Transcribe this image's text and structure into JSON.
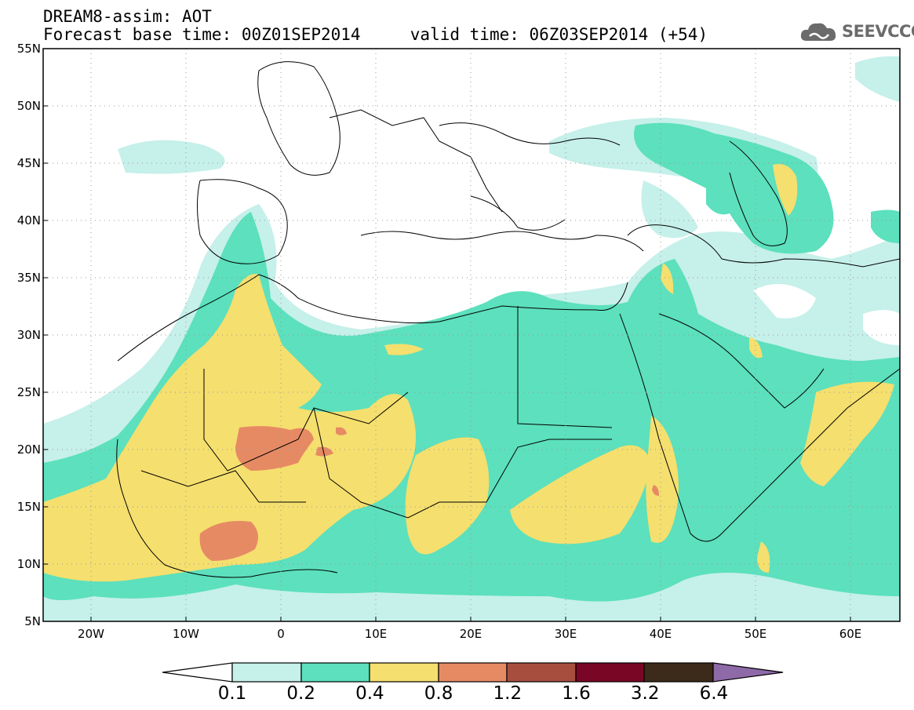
{
  "header": {
    "title_line1": "DREAM8-assim: AOT",
    "title_line2": "Forecast base time: 00Z01SEP2014     valid time: 06Z03SEP2014 (+54)"
  },
  "logo": {
    "icon": "cloud-logo-icon",
    "text": "SEEVCCC"
  },
  "map": {
    "lat_labels": [
      "55N",
      "50N",
      "45N",
      "40N",
      "35N",
      "30N",
      "25N",
      "20N",
      "15N",
      "10N",
      "5N"
    ],
    "lon_labels": [
      "20W",
      "10W",
      "0",
      "10E",
      "20E",
      "30E",
      "40E",
      "50E",
      "60E"
    ]
  },
  "colorbar": {
    "labels": [
      "0.1",
      "0.2",
      "0.4",
      "0.8",
      "1.2",
      "1.6",
      "3.2",
      "6.4"
    ],
    "colors": [
      "#ffffff",
      "#c6f0ea",
      "#5ce0bd",
      "#f5df6e",
      "#e68a64",
      "#a84e3f",
      "#7a0626",
      "#3c2a1a",
      "#8e6aa8"
    ]
  },
  "colors": {
    "aot_0_1": "#c6f0ea",
    "aot_0_2": "#5ce0bd",
    "aot_0_4": "#f5df6e",
    "aot_0_8": "#e68a64",
    "aot_1_2": "#a84e3f"
  }
}
